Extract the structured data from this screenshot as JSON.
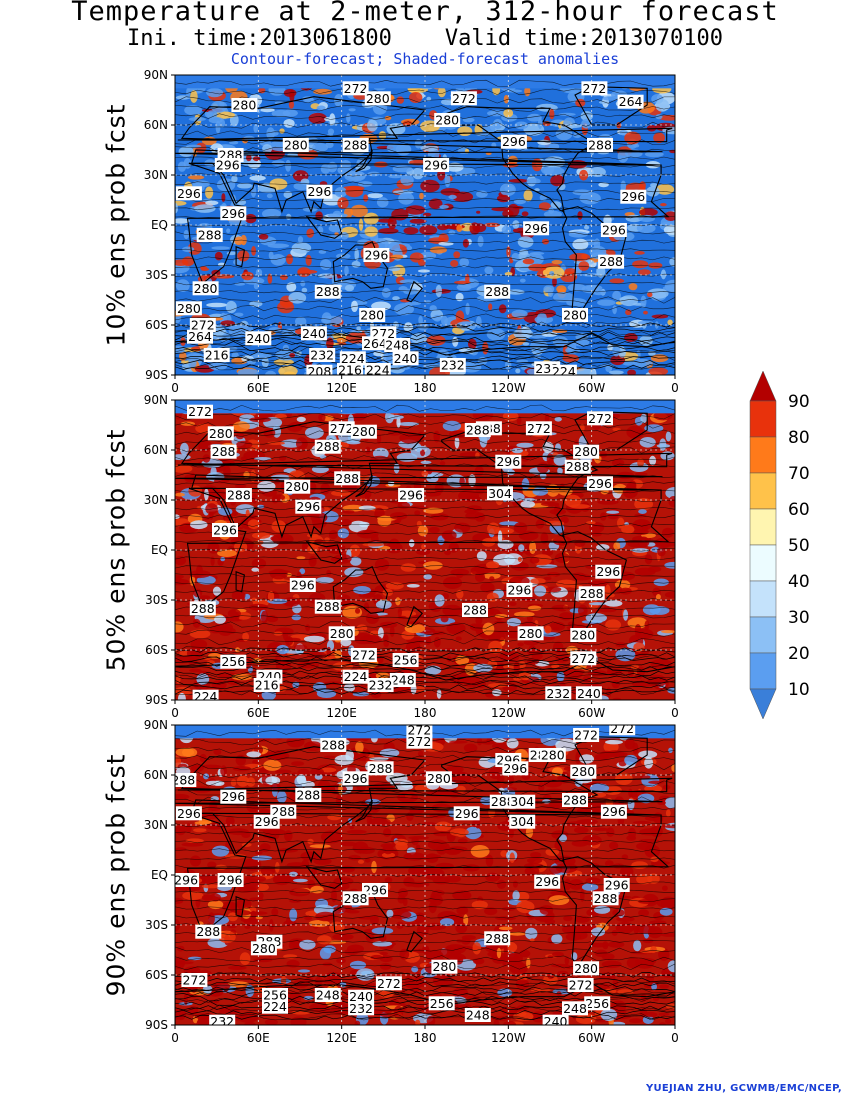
{
  "header": {
    "title": "Temperature at 2-meter, 312-hour forecast",
    "times": "Ini. time:2013061800    Valid time:2013070100",
    "subtitle": "Contour-forecast; Shaded-forecast anomalies"
  },
  "footer": "YUEJIAN ZHU, GCWMB/EMC/NCEP,",
  "axes": {
    "lat_ticks": [
      "90N",
      "60N",
      "30N",
      "EQ",
      "30S",
      "60S",
      "90S"
    ],
    "lon_ticks": [
      "0",
      "60E",
      "120E",
      "180",
      "120W",
      "60W",
      "0"
    ]
  },
  "colorbar": {
    "levels": [
      "10",
      "20",
      "30",
      "40",
      "50",
      "60",
      "70",
      "80",
      "90"
    ],
    "colors": [
      "#3a7fd9",
      "#5b9ef0",
      "#8cc0f5",
      "#c4e2fb",
      "#ecfcff",
      "#fff5b0",
      "#ffc24a",
      "#ff7a1a",
      "#e8320c",
      "#b30000"
    ]
  },
  "palette": {
    "ocean_blue": "#1f6fe0",
    "land_outline": "#000000"
  },
  "chart_data": [
    {
      "type": "heatmap",
      "name": "10% ens prob fcst",
      "dominant": "blue",
      "contour_labels": [
        {
          "lon": 130,
          "lat": 82,
          "v": "272"
        },
        {
          "lon": 50,
          "lat": 72,
          "v": "280"
        },
        {
          "lon": 146,
          "lat": 76,
          "v": "280"
        },
        {
          "lon": 208,
          "lat": 76,
          "v": "272"
        },
        {
          "lon": 302,
          "lat": 82,
          "v": "272"
        },
        {
          "lon": 328,
          "lat": 74,
          "v": "264"
        },
        {
          "lon": 196,
          "lat": 63,
          "v": "280"
        },
        {
          "lon": 244,
          "lat": 50,
          "v": "296"
        },
        {
          "lon": 87,
          "lat": 48,
          "v": "280"
        },
        {
          "lon": 130,
          "lat": 48,
          "v": "288"
        },
        {
          "lon": 306,
          "lat": 48,
          "v": "288"
        },
        {
          "lon": 40,
          "lat": 42,
          "v": "288"
        },
        {
          "lon": 38,
          "lat": 36,
          "v": "296"
        },
        {
          "lon": 188,
          "lat": 36,
          "v": "296"
        },
        {
          "lon": 10,
          "lat": 19,
          "v": "296"
        },
        {
          "lon": 104,
          "lat": 20,
          "v": "296"
        },
        {
          "lon": 330,
          "lat": 17,
          "v": "296"
        },
        {
          "lon": 42,
          "lat": 7,
          "v": "296"
        },
        {
          "lon": 25,
          "lat": -6,
          "v": "288"
        },
        {
          "lon": 260,
          "lat": -2,
          "v": "296"
        },
        {
          "lon": 316,
          "lat": -3,
          "v": "296"
        },
        {
          "lon": 145,
          "lat": -18,
          "v": "296"
        },
        {
          "lon": 314,
          "lat": -22,
          "v": "288"
        },
        {
          "lon": 22,
          "lat": -38,
          "v": "280"
        },
        {
          "lon": 110,
          "lat": -40,
          "v": "288"
        },
        {
          "lon": 232,
          "lat": -40,
          "v": "288"
        },
        {
          "lon": 10,
          "lat": -50,
          "v": "280"
        },
        {
          "lon": 142,
          "lat": -54,
          "v": "280"
        },
        {
          "lon": 288,
          "lat": -54,
          "v": "280"
        },
        {
          "lon": 20,
          "lat": -60,
          "v": "272"
        },
        {
          "lon": 100,
          "lat": -65,
          "v": "240"
        },
        {
          "lon": 150,
          "lat": -65,
          "v": "272"
        },
        {
          "lon": 144,
          "lat": -71,
          "v": "264"
        },
        {
          "lon": 18,
          "lat": -67,
          "v": "264"
        },
        {
          "lon": 60,
          "lat": -68,
          "v": "240"
        },
        {
          "lon": 160,
          "lat": -72,
          "v": "248"
        },
        {
          "lon": 106,
          "lat": -78,
          "v": "232"
        },
        {
          "lon": 128,
          "lat": -80,
          "v": "224"
        },
        {
          "lon": 30,
          "lat": -78,
          "v": "216"
        },
        {
          "lon": 200,
          "lat": -84,
          "v": "232"
        },
        {
          "lon": 166,
          "lat": -80,
          "v": "240"
        },
        {
          "lon": 268,
          "lat": -86,
          "v": "232"
        },
        {
          "lon": 146,
          "lat": -87,
          "v": "224"
        },
        {
          "lon": 104,
          "lat": -88,
          "v": "208"
        },
        {
          "lon": 126,
          "lat": -87,
          "v": "216"
        },
        {
          "lon": 280,
          "lat": -88,
          "v": "224"
        }
      ]
    },
    {
      "type": "heatmap",
      "name": "50% ens prob fcst",
      "dominant": "red",
      "contour_labels": [
        {
          "lon": 18,
          "lat": 83,
          "v": "272"
        },
        {
          "lon": 33,
          "lat": 70,
          "v": "280"
        },
        {
          "lon": 120,
          "lat": 73,
          "v": "272"
        },
        {
          "lon": 136,
          "lat": 71,
          "v": "280"
        },
        {
          "lon": 226,
          "lat": 73,
          "v": "288"
        },
        {
          "lon": 218,
          "lat": 72,
          "v": "288"
        },
        {
          "lon": 262,
          "lat": 73,
          "v": "272"
        },
        {
          "lon": 306,
          "lat": 79,
          "v": "272"
        },
        {
          "lon": 35,
          "lat": 59,
          "v": "288"
        },
        {
          "lon": 110,
          "lat": 62,
          "v": "288"
        },
        {
          "lon": 296,
          "lat": 59,
          "v": "280"
        },
        {
          "lon": 240,
          "lat": 53,
          "v": "296"
        },
        {
          "lon": 290,
          "lat": 50,
          "v": "288"
        },
        {
          "lon": 306,
          "lat": 40,
          "v": "296"
        },
        {
          "lon": 124,
          "lat": 43,
          "v": "288"
        },
        {
          "lon": 88,
          "lat": 38,
          "v": "280"
        },
        {
          "lon": 170,
          "lat": 33,
          "v": "296"
        },
        {
          "lon": 234,
          "lat": 34,
          "v": "304"
        },
        {
          "lon": 46,
          "lat": 33,
          "v": "288"
        },
        {
          "lon": 96,
          "lat": 26,
          "v": "296"
        },
        {
          "lon": 36,
          "lat": 12,
          "v": "296"
        },
        {
          "lon": 312,
          "lat": -13,
          "v": "296"
        },
        {
          "lon": 92,
          "lat": -21,
          "v": "296"
        },
        {
          "lon": 248,
          "lat": -24,
          "v": "296"
        },
        {
          "lon": 300,
          "lat": -26,
          "v": "288"
        },
        {
          "lon": 20,
          "lat": -35,
          "v": "288"
        },
        {
          "lon": 110,
          "lat": -34,
          "v": "288"
        },
        {
          "lon": 216,
          "lat": -36,
          "v": "288"
        },
        {
          "lon": 120,
          "lat": -50,
          "v": "280"
        },
        {
          "lon": 256,
          "lat": -50,
          "v": "280"
        },
        {
          "lon": 294,
          "lat": -51,
          "v": "280"
        },
        {
          "lon": 136,
          "lat": -63,
          "v": "272"
        },
        {
          "lon": 166,
          "lat": -66,
          "v": "256"
        },
        {
          "lon": 294,
          "lat": -65,
          "v": "272"
        },
        {
          "lon": 42,
          "lat": -67,
          "v": "256"
        },
        {
          "lon": 68,
          "lat": -76,
          "v": "240"
        },
        {
          "lon": 66,
          "lat": -81,
          "v": "216"
        },
        {
          "lon": 130,
          "lat": -76,
          "v": "224"
        },
        {
          "lon": 164,
          "lat": -78,
          "v": "248"
        },
        {
          "lon": 148,
          "lat": -81,
          "v": "232"
        },
        {
          "lon": 298,
          "lat": -86,
          "v": "240"
        },
        {
          "lon": 276,
          "lat": -86,
          "v": "232"
        },
        {
          "lon": 22,
          "lat": -88,
          "v": "224"
        }
      ]
    },
    {
      "type": "heatmap",
      "name": "90% ens prob fcst",
      "dominant": "red",
      "contour_labels": [
        {
          "lon": 176,
          "lat": 87,
          "v": "272"
        },
        {
          "lon": 176,
          "lat": 80,
          "v": "272"
        },
        {
          "lon": 114,
          "lat": 78,
          "v": "288"
        },
        {
          "lon": 296,
          "lat": 84,
          "v": "272"
        },
        {
          "lon": 322,
          "lat": 88,
          "v": "272"
        },
        {
          "lon": 264,
          "lat": 72,
          "v": "288"
        },
        {
          "lon": 272,
          "lat": 72,
          "v": "280"
        },
        {
          "lon": 240,
          "lat": 69,
          "v": "296"
        },
        {
          "lon": 245,
          "lat": 64,
          "v": "296"
        },
        {
          "lon": 148,
          "lat": 64,
          "v": "288"
        },
        {
          "lon": 130,
          "lat": 58,
          "v": "296"
        },
        {
          "lon": 190,
          "lat": 58,
          "v": "280"
        },
        {
          "lon": 294,
          "lat": 62,
          "v": "280"
        },
        {
          "lon": 6,
          "lat": 57,
          "v": "288"
        },
        {
          "lon": 42,
          "lat": 47,
          "v": "296"
        },
        {
          "lon": 96,
          "lat": 48,
          "v": "288"
        },
        {
          "lon": 78,
          "lat": 38,
          "v": "288"
        },
        {
          "lon": 66,
          "lat": 32,
          "v": "296"
        },
        {
          "lon": 10,
          "lat": 37,
          "v": "296"
        },
        {
          "lon": 236,
          "lat": 44,
          "v": "288"
        },
        {
          "lon": 250,
          "lat": 44,
          "v": "304"
        },
        {
          "lon": 288,
          "lat": 45,
          "v": "288"
        },
        {
          "lon": 316,
          "lat": 38,
          "v": "296"
        },
        {
          "lon": 210,
          "lat": 37,
          "v": "296"
        },
        {
          "lon": 250,
          "lat": 32,
          "v": "304"
        },
        {
          "lon": 8,
          "lat": -3,
          "v": "296"
        },
        {
          "lon": 40,
          "lat": -3,
          "v": "296"
        },
        {
          "lon": 268,
          "lat": -4,
          "v": "296"
        },
        {
          "lon": 318,
          "lat": -6,
          "v": "296"
        },
        {
          "lon": 144,
          "lat": -9,
          "v": "296"
        },
        {
          "lon": 130,
          "lat": -14,
          "v": "288"
        },
        {
          "lon": 310,
          "lat": -14,
          "v": "288"
        },
        {
          "lon": 24,
          "lat": -34,
          "v": "288"
        },
        {
          "lon": 68,
          "lat": -40,
          "v": "288"
        },
        {
          "lon": 64,
          "lat": -44,
          "v": "280"
        },
        {
          "lon": 232,
          "lat": -38,
          "v": "288"
        },
        {
          "lon": 194,
          "lat": -55,
          "v": "280"
        },
        {
          "lon": 296,
          "lat": -56,
          "v": "280"
        },
        {
          "lon": 14,
          "lat": -63,
          "v": "272"
        },
        {
          "lon": 154,
          "lat": -65,
          "v": "272"
        },
        {
          "lon": 292,
          "lat": -66,
          "v": "272"
        },
        {
          "lon": 72,
          "lat": -72,
          "v": "256"
        },
        {
          "lon": 110,
          "lat": -72,
          "v": "248"
        },
        {
          "lon": 134,
          "lat": -73,
          "v": "240"
        },
        {
          "lon": 304,
          "lat": -77,
          "v": "256"
        },
        {
          "lon": 288,
          "lat": -80,
          "v": "248"
        },
        {
          "lon": 72,
          "lat": -79,
          "v": "224"
        },
        {
          "lon": 134,
          "lat": -80,
          "v": "232"
        },
        {
          "lon": 192,
          "lat": -77,
          "v": "256"
        },
        {
          "lon": 218,
          "lat": -84,
          "v": "248"
        },
        {
          "lon": 34,
          "lat": -88,
          "v": "232"
        },
        {
          "lon": 274,
          "lat": -88,
          "v": "240"
        }
      ]
    }
  ]
}
